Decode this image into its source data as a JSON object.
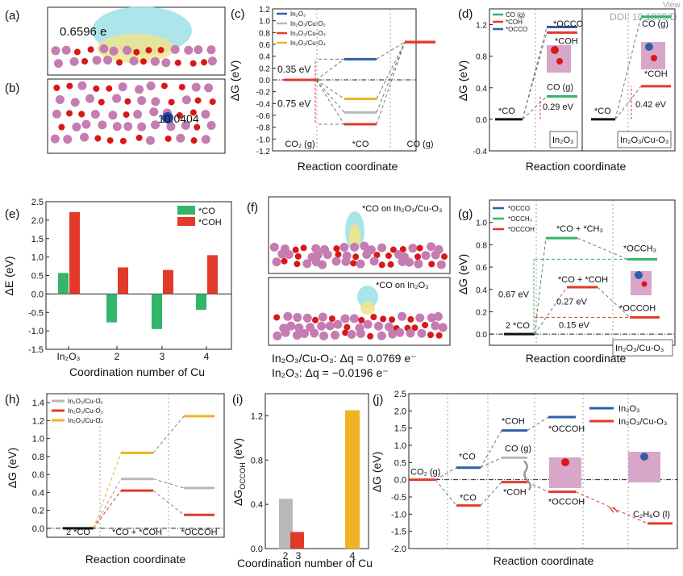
{
  "labels": {
    "a": "(a)",
    "b": "(b)",
    "c": "(c)",
    "d": "(d)",
    "e": "(e)",
    "f": "(f)",
    "g": "(g)",
    "h": "(h)",
    "i": "(i)",
    "j": "(j)"
  },
  "structure_text": {
    "a_charge": "0.6596 e",
    "b_value": "10.0404",
    "f_top": "*CO on In₂O₃/Cu-O₃",
    "f_bottom": "*CO on In₂O₃",
    "f_dq1": "In₂O₃/Cu-O₃: Δq = 0.0769 e⁻",
    "f_dq2": "In₂O₃: Δq = −0.0196 e⁻",
    "watermark": "DOI: 10.1039/D",
    "watermark2": "View"
  },
  "colors": {
    "blue": "#2f5faa",
    "gray": "#b8b8b8",
    "red": "#e23a2a",
    "yellow": "#f0b323",
    "green": "#33b56a",
    "black": "#111111",
    "atom_o": "#d81818",
    "atom_in": "#c47cb1",
    "atom_cu": "#2244aa"
  },
  "chart_data": [
    {
      "id": "c",
      "type": "line",
      "xlabel": "Reaction coordinate",
      "ylabel": "ΔG (eV)",
      "ylim": [
        -1.2,
        1.2
      ],
      "yticks": [
        -1.2,
        -1.0,
        -0.8,
        -0.6,
        -0.4,
        -0.2,
        0.0,
        0.2,
        0.4,
        0.6,
        0.8,
        1.0,
        1.2
      ],
      "stages": [
        "CO₂ (g)",
        "*CO",
        "CO (g)"
      ],
      "series": [
        {
          "name": "In₂O₃",
          "color": "#2f5faa",
          "values": [
            0.0,
            0.35,
            0.64
          ]
        },
        {
          "name": "In₂O₃/Cu-O₂",
          "color": "#b8b8b8",
          "values": [
            0.0,
            -0.55,
            0.64
          ]
        },
        {
          "name": "In₂O₃/Cu-O₃",
          "color": "#e23a2a",
          "values": [
            0.0,
            -0.75,
            0.64
          ]
        },
        {
          "name": "In₂O₃/Cu-O₄",
          "color": "#f0b323",
          "values": [
            0.0,
            -0.32,
            0.64
          ]
        }
      ],
      "annotations": [
        "0.35 eV",
        "0.75 eV"
      ]
    },
    {
      "id": "d",
      "type": "line",
      "xlabel": "Reaction coordinate",
      "ylabel": "ΔG (eV)",
      "ylim": [
        -0.4,
        1.4
      ],
      "yticks": [
        -0.4,
        0.0,
        0.4,
        0.8,
        1.2
      ],
      "legend": [
        {
          "name": "CO (g)",
          "color": "#33b56a"
        },
        {
          "name": "*COH",
          "color": "#e23a2a"
        },
        {
          "name": "*OCCO",
          "color": "#2f5faa"
        }
      ],
      "panels": [
        {
          "name": "In₂O₃",
          "start": {
            "label": "*CO",
            "value": 0.0
          },
          "levels": [
            {
              "label": "*OCCO",
              "value": 1.17,
              "color": "#2f5faa"
            },
            {
              "label": "*COH",
              "value": 1.1,
              "color": "#e23a2a"
            },
            {
              "label": "CO (g)",
              "value": 0.29,
              "color": "#33b56a"
            }
          ],
          "gap": "0.29 eV"
        },
        {
          "name": "In₂O₃/Cu-O₃",
          "start": {
            "label": "*CO",
            "value": 0.0
          },
          "levels": [
            {
              "label": "CO (g)",
              "value": 1.3,
              "color": "#33b56a"
            },
            {
              "label": "*COH",
              "value": 0.42,
              "color": "#e23a2a"
            }
          ],
          "gap": "0.42 eV"
        }
      ]
    },
    {
      "id": "e",
      "type": "bar",
      "xlabel": "Coordination number of Cu",
      "ylabel": "ΔE (eV)",
      "categories": [
        "In₂O₃",
        "2",
        "3",
        "4"
      ],
      "ylim": [
        -1.5,
        2.5
      ],
      "yticks": [
        -1.5,
        -1.0,
        -0.5,
        0.0,
        0.5,
        1.0,
        1.5,
        2.0,
        2.5
      ],
      "series": [
        {
          "name": "*CO",
          "color": "#33b56a",
          "values": [
            0.57,
            -0.77,
            -0.95,
            -0.43
          ]
        },
        {
          "name": "*COH",
          "color": "#e23a2a",
          "values": [
            2.22,
            0.72,
            0.65,
            1.05
          ]
        }
      ]
    },
    {
      "id": "g",
      "type": "line",
      "xlabel": "Reaction coordinate",
      "ylabel": "ΔG (eV)",
      "ylim": [
        -0.1,
        1.2
      ],
      "yticks": [
        0.0,
        0.2,
        0.4,
        0.6,
        0.8,
        1.0
      ],
      "legend": [
        {
          "name": "*OCCO",
          "color": "#2f5faa"
        },
        {
          "name": "*OCCH₃",
          "color": "#33b56a"
        },
        {
          "name": "*OCCOH",
          "color": "#e23a2a"
        }
      ],
      "levels": [
        {
          "label": "2 *CO",
          "value": 0.0,
          "color": "#111111"
        },
        {
          "label": "*CO + *CH₃",
          "value": 0.86,
          "color": "#33b56a"
        },
        {
          "label": "*OCCH₃",
          "value": 0.67,
          "color": "#33b56a"
        },
        {
          "label": "*CO + *COH",
          "value": 0.42,
          "color": "#e23a2a"
        },
        {
          "label": "*OCCOH",
          "value": 0.15,
          "color": "#e23a2a"
        }
      ],
      "gaps": [
        "0.67 eV",
        "0.27 eV",
        "0.15 eV"
      ],
      "panel_label": "In₂O₃/Cu-O₃"
    },
    {
      "id": "h",
      "type": "line",
      "xlabel": "Reaction coordinate",
      "ylabel": "ΔG (eV)",
      "ylim": [
        -0.1,
        1.5
      ],
      "yticks": [
        0.0,
        0.2,
        0.4,
        0.6,
        0.8,
        1.0,
        1.2,
        1.4
      ],
      "stages": [
        "2 *CO",
        "*CO + *COH",
        "*OCCOH"
      ],
      "series": [
        {
          "name": "In₂O₃/Cu-O₂",
          "color": "#b8b8b8",
          "values": [
            0.0,
            0.55,
            0.45
          ]
        },
        {
          "name": "In₂O₃/Cu-O₃",
          "color": "#e23a2a",
          "values": [
            0.0,
            0.42,
            0.15
          ]
        },
        {
          "name": "In₂O₃/Cu-O₄",
          "color": "#f0b323",
          "values": [
            0.0,
            0.84,
            1.25
          ]
        }
      ]
    },
    {
      "id": "i",
      "type": "bar",
      "xlabel": "Coordination number of Cu",
      "ylabel": "ΔGₒₑₑₒₕ (eV)",
      "ylabel_main": "ΔG",
      "ylabel_sub": "OCCOH",
      "categories": [
        "2",
        "3",
        "4"
      ],
      "values": [
        0.45,
        0.15,
        1.25
      ],
      "colors": [
        "#b8b8b8",
        "#e23a2a",
        "#f0b323"
      ],
      "ylim": [
        0,
        1.4
      ],
      "yticks": [
        0.0,
        0.4,
        0.8,
        1.2
      ]
    },
    {
      "id": "j",
      "type": "line",
      "xlabel": "Reaction coordinate",
      "ylabel": "ΔG (eV)",
      "ylim": [
        -2.0,
        2.5
      ],
      "yticks": [
        -2.0,
        -1.5,
        -1.0,
        -0.5,
        0.0,
        0.5,
        1.0,
        1.5,
        2.0,
        2.5
      ],
      "series": [
        {
          "name": "In₂O₃",
          "color": "#2f5faa",
          "levels": [
            {
              "label": "CO₂ (g)",
              "value": 0.0
            },
            {
              "label": "*CO",
              "value": 0.35
            },
            {
              "label": "*COH",
              "value": 1.43
            },
            {
              "label": "*OCCOH",
              "value": 1.82
            }
          ]
        },
        {
          "name": "In₂O₃/Cu-O₃",
          "color": "#e23a2a",
          "levels": [
            {
              "label": "CO₂ (g)",
              "value": 0.0
            },
            {
              "label": "*CO",
              "value": -0.75
            },
            {
              "label": "*COH",
              "value": -0.07
            },
            {
              "label": "*OCCOH",
              "value": -0.35
            },
            {
              "label": "C₂H₆O (l)",
              "value": -1.27
            }
          ]
        }
      ],
      "extra_levels": [
        {
          "label": "CO (g)",
          "value": 0.64,
          "color": "#b8b8b8"
        }
      ]
    }
  ]
}
